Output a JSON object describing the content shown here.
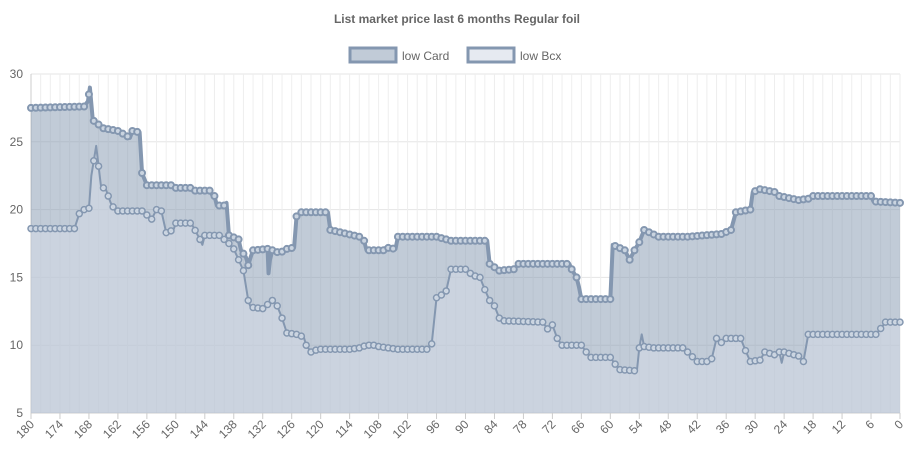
{
  "chart_data": {
    "type": "area",
    "title": "List market price last 6 months Regular foil",
    "xlabel": "",
    "ylabel": "",
    "x_reversed": true,
    "xlim": [
      180,
      0
    ],
    "ylim": [
      5,
      30
    ],
    "x_ticks": [
      180,
      174,
      168,
      162,
      156,
      150,
      144,
      138,
      132,
      126,
      120,
      114,
      108,
      102,
      96,
      90,
      84,
      78,
      72,
      66,
      60,
      54,
      48,
      42,
      36,
      30,
      24,
      18,
      12,
      6,
      0
    ],
    "y_ticks": [
      5,
      10,
      15,
      20,
      25,
      30
    ],
    "grid": true,
    "legend_position": "top",
    "series": [
      {
        "name": "low Card",
        "color": "#8497b0",
        "fill": "rgba(132,151,176,0.5)",
        "points": [
          [
            180,
            27.5
          ],
          [
            169,
            27.6
          ],
          [
            168.2,
            28
          ],
          [
            167.8,
            29
          ],
          [
            167.2,
            26.6
          ],
          [
            165,
            26
          ],
          [
            162,
            25.8
          ],
          [
            159.5,
            25.3
          ],
          [
            159,
            25.8
          ],
          [
            157.5,
            25.7
          ],
          [
            157,
            22.7
          ],
          [
            156,
            21.8
          ],
          [
            151,
            21.8
          ],
          [
            150,
            21.6
          ],
          [
            147,
            21.6
          ],
          [
            146.5,
            21.4
          ],
          [
            143,
            21.4
          ],
          [
            142.5,
            21.1
          ],
          [
            142,
            21
          ],
          [
            141.5,
            20.3
          ],
          [
            140,
            20.3
          ],
          [
            139.5,
            20.5
          ],
          [
            139,
            18.1
          ],
          [
            137,
            17.8
          ],
          [
            136.5,
            17
          ],
          [
            135.5,
            16.5
          ],
          [
            135,
            15.9
          ],
          [
            134.5,
            16.5
          ],
          [
            134,
            17
          ],
          [
            131,
            17.1
          ],
          [
            130.8,
            15.3
          ],
          [
            130.5,
            16.3
          ],
          [
            130,
            17
          ],
          [
            128.5,
            16.8
          ],
          [
            127,
            17.1
          ],
          [
            125.5,
            17.2
          ],
          [
            125,
            19.5
          ],
          [
            124,
            19.8
          ],
          [
            118.5,
            19.8
          ],
          [
            118,
            18.5
          ],
          [
            112,
            18
          ],
          [
            111,
            17.7
          ],
          [
            110.5,
            17
          ],
          [
            107,
            17
          ],
          [
            106.5,
            17.2
          ],
          [
            104.5,
            17.1
          ],
          [
            104,
            18
          ],
          [
            96,
            18
          ],
          [
            93,
            17.7
          ],
          [
            85.5,
            17.7
          ],
          [
            85,
            16
          ],
          [
            83,
            15.5
          ],
          [
            80,
            15.6
          ],
          [
            79,
            16
          ],
          [
            68.5,
            16
          ],
          [
            68,
            15.6
          ],
          [
            67,
            15
          ],
          [
            66.5,
            14.3
          ],
          [
            66,
            13.4
          ],
          [
            60,
            13.4
          ],
          [
            59.5,
            17.4
          ],
          [
            57,
            17
          ],
          [
            56,
            16.3
          ],
          [
            55,
            17
          ],
          [
            54,
            17.6
          ],
          [
            53,
            18.5
          ],
          [
            50,
            18
          ],
          [
            44,
            18
          ],
          [
            37,
            18.2
          ],
          [
            35,
            18.5
          ],
          [
            34,
            19.8
          ],
          [
            31,
            20
          ],
          [
            30.5,
            21.3
          ],
          [
            29,
            21.5
          ],
          [
            26,
            21.3
          ],
          [
            25,
            21
          ],
          [
            21,
            20.7
          ],
          [
            19,
            20.8
          ],
          [
            18,
            21
          ],
          [
            6,
            21
          ],
          [
            5.5,
            20.6
          ],
          [
            0,
            20.5
          ]
        ]
      },
      {
        "name": "low Bcx",
        "color": "#8497b0",
        "fill": "rgba(213,220,232,0.5)",
        "points": [
          [
            180,
            18.6
          ],
          [
            171,
            18.6
          ],
          [
            170,
            19.7
          ],
          [
            169,
            20
          ],
          [
            168,
            20.1
          ],
          [
            167.5,
            22.5
          ],
          [
            166.5,
            24.7
          ],
          [
            165.5,
            21.7
          ],
          [
            164.5,
            21.5
          ],
          [
            163.5,
            20.5
          ],
          [
            162.5,
            19.9
          ],
          [
            157,
            19.9
          ],
          [
            156,
            19.6
          ],
          [
            155,
            19.3
          ],
          [
            154,
            20
          ],
          [
            153,
            19.9
          ],
          [
            152,
            18.3
          ],
          [
            150.5,
            18.5
          ],
          [
            150,
            19
          ],
          [
            147,
            19
          ],
          [
            146.5,
            18.8
          ],
          [
            145,
            17.8
          ],
          [
            144.5,
            17.4
          ],
          [
            144,
            18.1
          ],
          [
            141,
            18.1
          ],
          [
            140,
            17.8
          ],
          [
            139,
            17.5
          ],
          [
            138,
            17.1
          ],
          [
            137,
            16.3
          ],
          [
            136,
            15.5
          ],
          [
            135,
            13.3
          ],
          [
            134.5,
            12.8
          ],
          [
            132,
            12.7
          ],
          [
            131,
            13
          ],
          [
            130,
            13.3
          ],
          [
            129,
            12.9
          ],
          [
            128,
            12
          ],
          [
            127,
            10.9
          ],
          [
            125,
            10.8
          ],
          [
            123.5,
            10.6
          ],
          [
            123,
            10
          ],
          [
            122,
            9.5
          ],
          [
            120.5,
            9.7
          ],
          [
            114,
            9.7
          ],
          [
            112,
            9.8
          ],
          [
            110.5,
            10
          ],
          [
            109,
            10
          ],
          [
            108,
            9.9
          ],
          [
            104,
            9.7
          ],
          [
            98,
            9.7
          ],
          [
            97,
            10.1
          ],
          [
            96,
            13.5
          ],
          [
            95,
            13.7
          ],
          [
            94,
            14
          ],
          [
            93,
            15.6
          ],
          [
            90,
            15.6
          ],
          [
            89,
            15.3
          ],
          [
            88,
            15.1
          ],
          [
            87,
            15
          ],
          [
            86,
            14.1
          ],
          [
            85,
            13.3
          ],
          [
            84,
            12.9
          ],
          [
            83,
            12
          ],
          [
            82,
            11.8
          ],
          [
            74,
            11.7
          ],
          [
            73,
            11.2
          ],
          [
            72,
            11.5
          ],
          [
            71,
            10.5
          ],
          [
            70,
            10
          ],
          [
            66,
            10
          ],
          [
            65,
            9.5
          ],
          [
            64,
            9.1
          ],
          [
            60,
            9.1
          ],
          [
            59,
            8.6
          ],
          [
            58,
            8.2
          ],
          [
            54.5,
            8.1
          ],
          [
            54,
            9.8
          ],
          [
            53.5,
            10.8
          ],
          [
            53,
            9.9
          ],
          [
            51,
            9.8
          ],
          [
            45,
            9.8
          ],
          [
            44,
            9.5
          ],
          [
            42,
            8.8
          ],
          [
            40,
            8.8
          ],
          [
            39,
            9
          ],
          [
            38,
            10.5
          ],
          [
            37,
            10.2
          ],
          [
            36,
            10.5
          ],
          [
            33,
            10.5
          ],
          [
            32,
            9.6
          ],
          [
            31,
            8.8
          ],
          [
            29,
            8.9
          ],
          [
            28,
            9.5
          ],
          [
            26,
            9.3
          ],
          [
            25,
            9.5
          ],
          [
            24.5,
            8.7
          ],
          [
            24,
            9.5
          ],
          [
            21,
            9.2
          ],
          [
            20,
            8.8
          ],
          [
            19,
            10.8
          ],
          [
            12,
            10.8
          ],
          [
            5,
            10.8
          ],
          [
            4.5,
            11
          ],
          [
            3,
            11.7
          ],
          [
            0,
            11.7
          ]
        ]
      }
    ]
  }
}
